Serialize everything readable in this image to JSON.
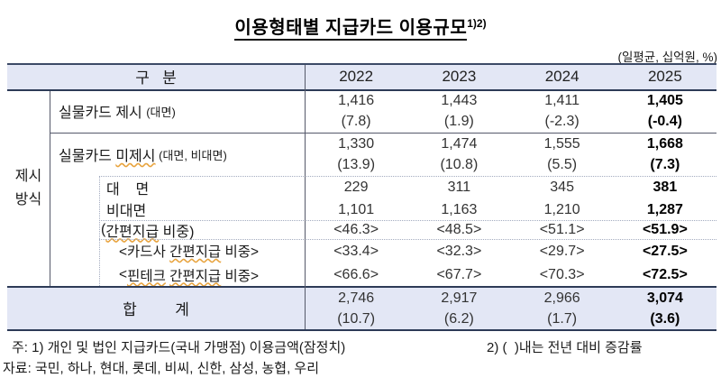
{
  "title": {
    "main": "이용형태별 지급카드 이용규모",
    "sup": "1)2)"
  },
  "unit_note": {
    "pre": "(일평균, ",
    "wavy": "십억원",
    "post": ", %)"
  },
  "table": {
    "corner_label": "구   분",
    "years": [
      "2022",
      "2023",
      "2024",
      "2025"
    ],
    "side_label": {
      "line1": "제시",
      "line2": "방식"
    },
    "rows": {
      "present": {
        "main": "실물카드 제시 ",
        "sub": "(대면)",
        "values": [
          [
            "1,416",
            "(7.8)"
          ],
          [
            "1,443",
            "(1.9)"
          ],
          [
            "1,411",
            "(-2.3)"
          ],
          [
            "1,405",
            "(-0.4)"
          ]
        ]
      },
      "not_present": {
        "pre": "실물카드 ",
        "wavy": "미제시",
        "sub": " (대면, 비대면)",
        "values": [
          [
            "1,330",
            "(13.9)"
          ],
          [
            "1,474",
            "(10.8)"
          ],
          [
            "1,555",
            "(5.5)"
          ],
          [
            "1,668",
            "(7.3)"
          ]
        ]
      },
      "face": {
        "label": "대    면",
        "values": [
          "229",
          "311",
          "345",
          "381"
        ]
      },
      "nonface": {
        "label": "비대면",
        "values": [
          "1,101",
          "1,163",
          "1,210",
          "1,287"
        ]
      },
      "simple_pay_share": {
        "pre": "(",
        "wavy": "간편지급",
        "post": " 비중)",
        "values": [
          "<46.3>",
          "<48.5>",
          "<51.1>",
          "<51.9>"
        ]
      },
      "card_simple_share": {
        "pre": "<카드사 ",
        "wavy": "간편지급",
        "post": " 비중>",
        "values": [
          "<33.4>",
          "<32.3>",
          "<29.7>",
          "<27.5>"
        ]
      },
      "fintech_simple_share": {
        "pre": "<",
        "wavy1": "핀테크",
        "mid": " ",
        "wavy2": "간편지급",
        "post": " 비중>",
        "values": [
          "<66.6>",
          "<67.7>",
          "<70.3>",
          "<72.5>"
        ]
      },
      "total": {
        "label": "합         계",
        "values": [
          [
            "2,746",
            "(10.7)"
          ],
          [
            "2,917",
            "(6.2)"
          ],
          [
            "2,966",
            "(1.7)"
          ],
          [
            "3,074",
            "(3.6)"
          ]
        ]
      }
    }
  },
  "footnotes": {
    "note1": "주: 1) 개인 및 법인 지급카드(국내 가맹점) 이용금액(잠정치)",
    "note2": "2) (  )내는 전년 대비 증감률",
    "source": "자료: 국민, 하나, 현대, 롯데, 비씨, 신한, 삼성, 농협, 우리"
  },
  "colors": {
    "band_bg": "#e3e7f5",
    "border_dark": "#2d3b57",
    "line_gray": "#55596a",
    "dotted_line": "#a3abbf",
    "wavy_underline": "#e8a33d"
  }
}
